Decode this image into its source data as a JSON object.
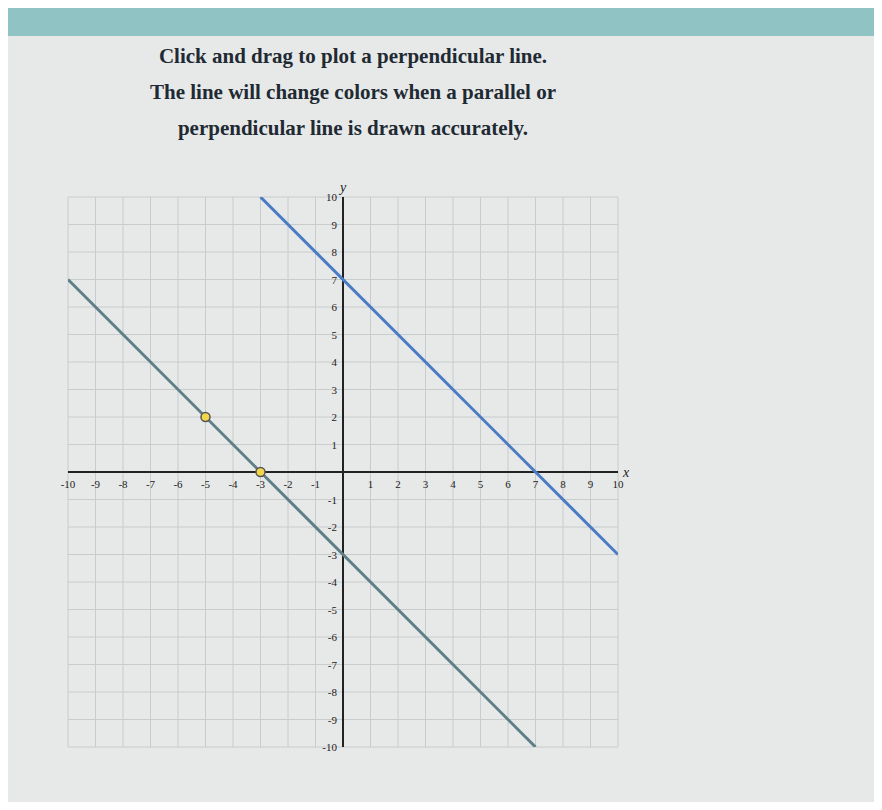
{
  "chart_data": {
    "type": "line",
    "title": "Click and drag to plot a perpendicular line.",
    "subtitle": "The line will change colors when a parallel or perpendicular line is drawn accurately.",
    "x_label": "x",
    "y_label": "y",
    "xlim": [
      -10,
      10
    ],
    "ylim": [
      -10,
      10
    ],
    "xticks": [
      -10,
      -9,
      -8,
      -7,
      -6,
      -5,
      -4,
      -3,
      -2,
      -1,
      1,
      2,
      3,
      4,
      5,
      6,
      7,
      8,
      9,
      10
    ],
    "yticks": [
      -10,
      -9,
      -8,
      -7,
      -6,
      -5,
      -4,
      -3,
      -2,
      -1,
      1,
      2,
      3,
      4,
      5,
      6,
      7,
      8,
      9,
      10
    ],
    "grid": true,
    "series": [
      {
        "type": "line",
        "color": "#4a7cc4",
        "line_style": "solid",
        "x": [
          -3,
          10
        ],
        "values": [
          10,
          -3
        ]
      },
      {
        "type": "line",
        "color": "#5f7f86",
        "line_style": "solid",
        "x": [
          -10,
          7
        ],
        "values": [
          7,
          -10
        ]
      },
      {
        "type": "scatter",
        "color": "#f2d64b",
        "marker": "circle",
        "x": [
          -5,
          -3
        ],
        "values": [
          2,
          0
        ]
      }
    ]
  }
}
